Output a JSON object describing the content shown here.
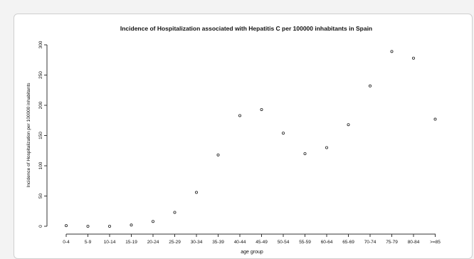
{
  "chart_data": {
    "type": "scatter",
    "title": "Incidence of Hospitalization associated with Hepatitis C per 100000 inhabitants in Spain",
    "xlabel": "age group",
    "ylabel": "Incidence of Hospitalization per 100000 inhabitants",
    "categories": [
      "0-4",
      "5-9",
      "10-14",
      "15-19",
      "20-24",
      "25-29",
      "30-34",
      "35-39",
      "40-44",
      "45-49",
      "50-54",
      "55-59",
      "60-64",
      "65-69",
      "70-74",
      "75-79",
      "80-84",
      ">=85"
    ],
    "values": [
      1,
      0,
      0,
      2,
      8,
      23,
      56,
      118,
      183,
      193,
      154,
      120,
      130,
      168,
      232,
      289,
      278,
      177
    ],
    "ylim": [
      0,
      300
    ],
    "yticks": [
      "0",
      "50",
      "100",
      "150",
      "200",
      "250",
      "300"
    ],
    "grid": false
  }
}
